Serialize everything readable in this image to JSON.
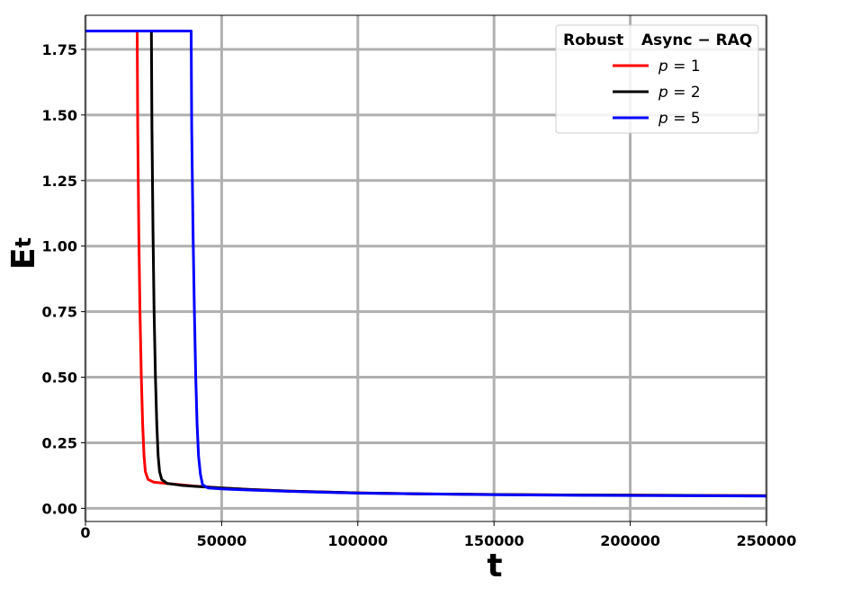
{
  "chart_data": {
    "type": "line",
    "title": "",
    "xlabel": "t",
    "ylabel": "E",
    "ylabel_subscript": "t",
    "xlim": [
      0,
      250000
    ],
    "ylim": [
      -0.05,
      1.88
    ],
    "xticks": [
      0,
      50000,
      100000,
      150000,
      200000,
      250000
    ],
    "xtick_labels": [
      "0",
      "50000",
      "100000",
      "150000",
      "200000",
      "250000"
    ],
    "yticks": [
      0.0,
      0.25,
      0.5,
      0.75,
      1.0,
      1.25,
      1.5,
      1.75
    ],
    "ytick_labels": [
      "0.00",
      "0.25",
      "0.50",
      "0.75",
      "1.00",
      "1.25",
      "1.50",
      "1.75"
    ],
    "grid": true,
    "legend": {
      "placement": "top-right",
      "title_parts": [
        "Robust",
        "Async − RAQ"
      ]
    },
    "series": [
      {
        "name": "p = 1",
        "label_var": "p",
        "label_val": "1",
        "color": "#ff0000",
        "x": [
          0,
          19000,
          19200,
          19600,
          20000,
          20500,
          21000,
          21500,
          22000,
          23000,
          25000,
          30000,
          40000,
          50000,
          60000,
          75000,
          100000,
          125000,
          150000,
          175000,
          200000,
          225000,
          250000
        ],
        "y": [
          1.82,
          1.82,
          1.45,
          1.05,
          0.75,
          0.5,
          0.32,
          0.2,
          0.14,
          0.11,
          0.1,
          0.095,
          0.085,
          0.078,
          0.072,
          0.066,
          0.059,
          0.055,
          0.053,
          0.051,
          0.05,
          0.049,
          0.048
        ]
      },
      {
        "name": "p = 2",
        "label_var": "p",
        "label_val": "2",
        "color": "#000000",
        "x": [
          0,
          24200,
          24400,
          24800,
          25200,
          25700,
          26200,
          26700,
          27200,
          28000,
          30000,
          35000,
          40000,
          50000,
          60000,
          75000,
          100000,
          125000,
          150000,
          175000,
          200000,
          225000,
          250000
        ],
        "y": [
          1.82,
          1.82,
          1.45,
          1.05,
          0.75,
          0.5,
          0.32,
          0.2,
          0.14,
          0.11,
          0.095,
          0.088,
          0.084,
          0.078,
          0.072,
          0.066,
          0.059,
          0.055,
          0.053,
          0.051,
          0.05,
          0.049,
          0.048
        ]
      },
      {
        "name": "p = 5",
        "label_var": "p",
        "label_val": "5",
        "color": "#0000ff",
        "x": [
          0,
          38800,
          39000,
          39500,
          40000,
          40500,
          41000,
          41500,
          42200,
          43000,
          45000,
          50000,
          60000,
          75000,
          100000,
          125000,
          150000,
          175000,
          200000,
          225000,
          250000
        ],
        "y": [
          1.82,
          1.82,
          1.45,
          1.05,
          0.75,
          0.5,
          0.32,
          0.2,
          0.13,
          0.09,
          0.078,
          0.074,
          0.07,
          0.065,
          0.058,
          0.055,
          0.052,
          0.05,
          0.049,
          0.048,
          0.047
        ]
      }
    ]
  }
}
